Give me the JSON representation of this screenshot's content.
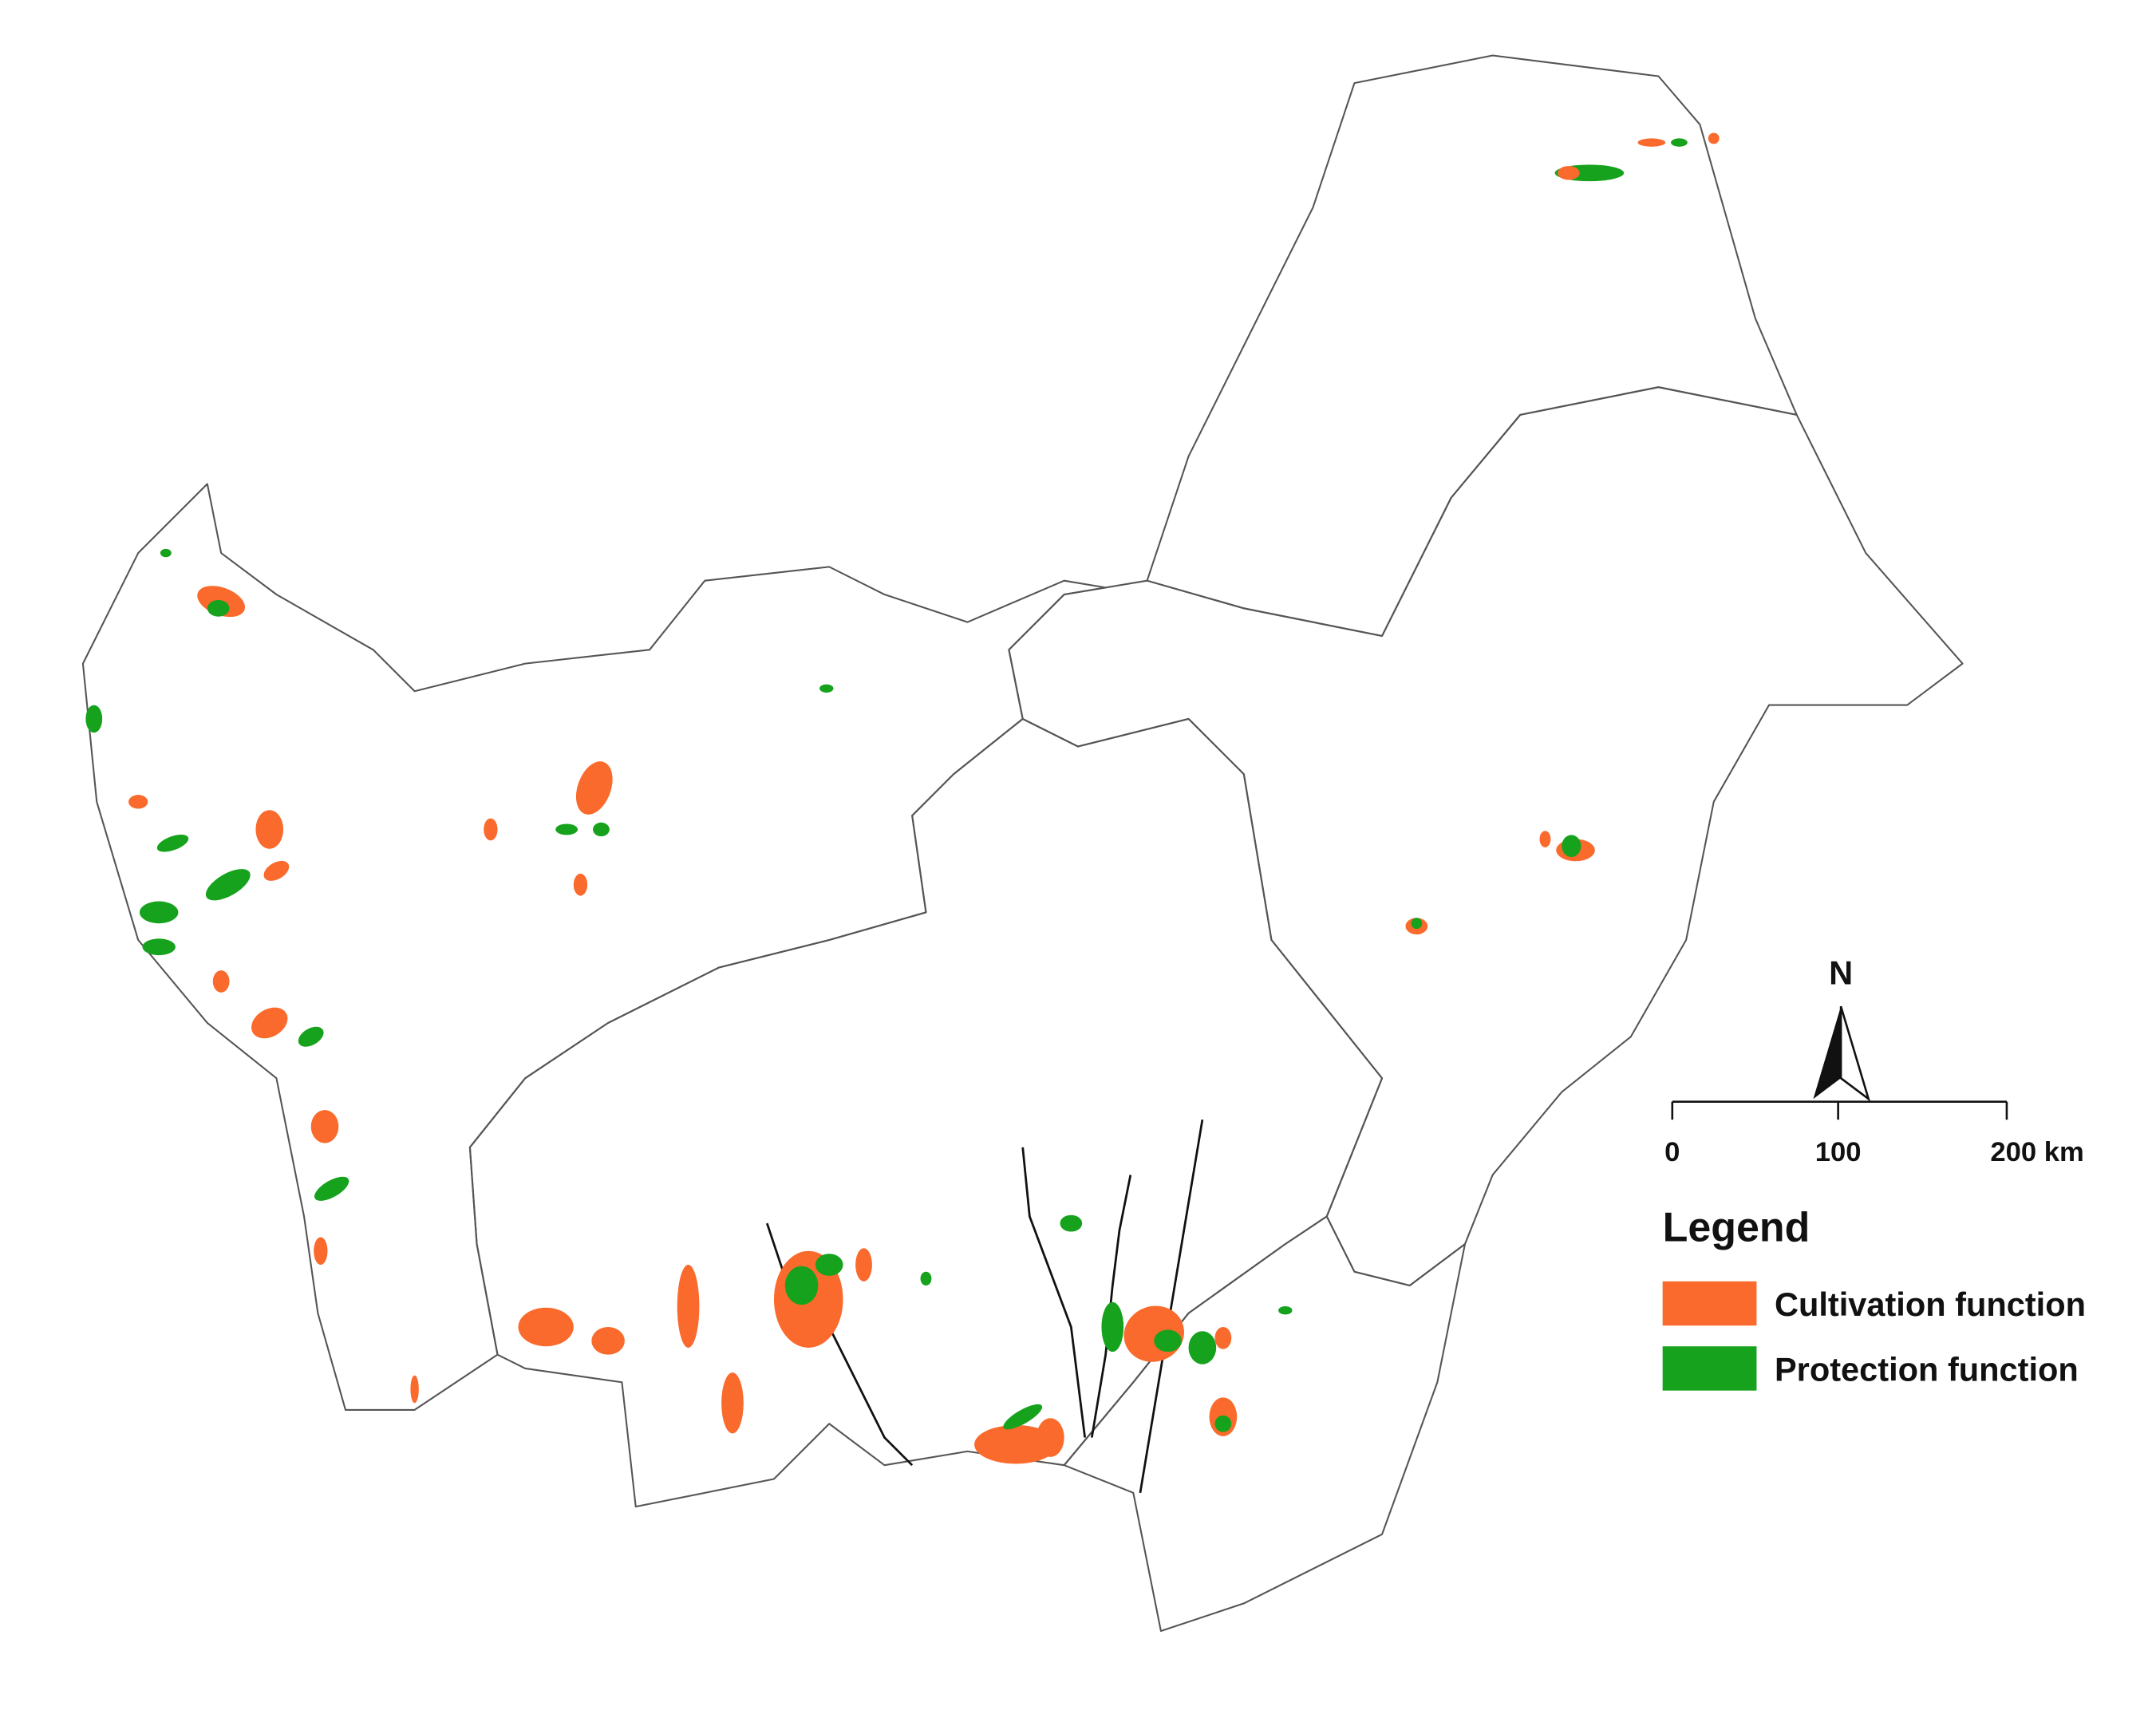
{
  "north_arrow": {
    "label": "N"
  },
  "scale_bar": {
    "labels": [
      "0",
      "100",
      "200 km"
    ]
  },
  "legend": {
    "title": "Legend",
    "items": [
      {
        "label": "Cultivation function",
        "color": "#fa6a2c"
      },
      {
        "label": "Protection function",
        "color": "#16a21c"
      }
    ]
  }
}
